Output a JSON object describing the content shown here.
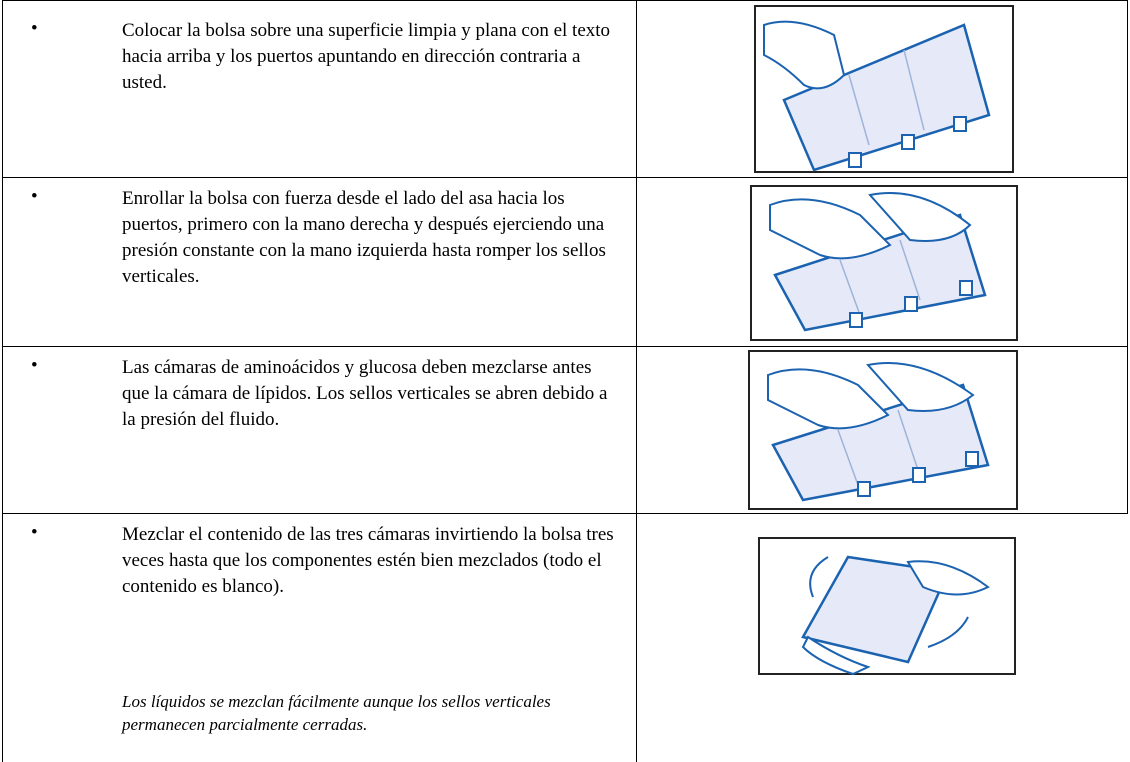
{
  "table": {
    "rows": [
      {
        "text": "Colocar la bolsa sobre una superficie limpia y plana con el texto hacia arriba y los puertos apuntando en dirección contraria a usted."
      },
      {
        "text": "Enrollar la bolsa con fuerza desde el lado del asa hacia los puertos, primero con la mano derecha y después ejerciendo una presión constante con la mano izquierda hasta romper los sellos verticales."
      },
      {
        "text": "Las cámaras de aminoácidos y glucosa deben mezclarse antes que la cámara de lípidos. Los sellos verticales se abren debido a la presión del fluido."
      },
      {
        "text": "Mezclar el contenido de las tres cámaras invirtiendo la bolsa tres veces hasta que los componentes estén bien mezclados (todo el contenido es blanco).",
        "note": "Los líquidos se mezclan fácilmente aunque los sellos verticales permanecen parcialmente cerradas."
      }
    ]
  }
}
